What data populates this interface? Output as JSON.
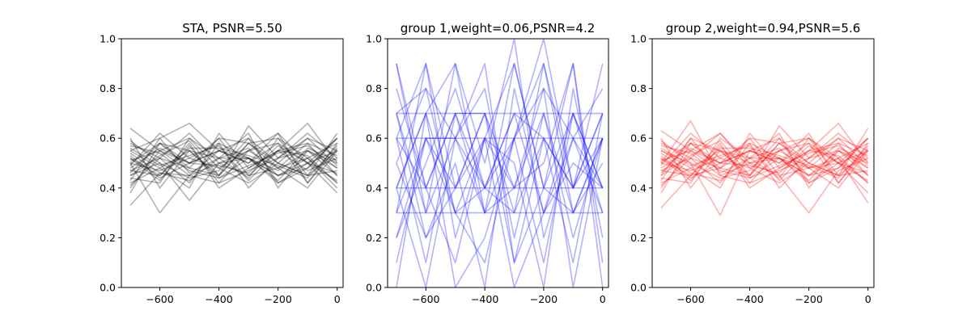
{
  "chart_data": [
    {
      "type": "line",
      "title": "STA, PSNR=5.50",
      "color": "#000000",
      "opacity": 0.3,
      "xlim": [
        -730,
        20
      ],
      "ylim": [
        0.0,
        1.0
      ],
      "xticks": [
        -600,
        -400,
        -200,
        0
      ],
      "yticks": [
        0.0,
        0.2,
        0.4,
        0.6,
        0.8,
        1.0
      ],
      "x": [
        -700,
        -600,
        -500,
        -400,
        -300,
        -200,
        -100,
        0
      ],
      "series": [
        {
          "values": [
            0.64,
            0.55,
            0.6,
            0.48,
            0.55,
            0.62,
            0.5,
            0.6
          ]
        },
        {
          "values": [
            0.33,
            0.46,
            0.45,
            0.55,
            0.52,
            0.47,
            0.55,
            0.45
          ]
        },
        {
          "values": [
            0.5,
            0.3,
            0.45,
            0.5,
            0.52,
            0.45,
            0.5,
            0.55
          ]
        },
        {
          "values": [
            0.55,
            0.6,
            0.66,
            0.55,
            0.6,
            0.5,
            0.6,
            0.55
          ]
        },
        {
          "values": [
            0.45,
            0.5,
            0.35,
            0.5,
            0.55,
            0.48,
            0.52,
            0.42
          ]
        },
        {
          "values": [
            0.58,
            0.52,
            0.48,
            0.6,
            0.45,
            0.55,
            0.47,
            0.52
          ]
        },
        {
          "values": [
            0.42,
            0.48,
            0.55,
            0.45,
            0.65,
            0.52,
            0.55,
            0.48
          ]
        },
        {
          "values": [
            0.4,
            0.55,
            0.5,
            0.55,
            0.5,
            0.62,
            0.42,
            0.58
          ]
        },
        {
          "values": [
            0.52,
            0.45,
            0.58,
            0.4,
            0.48,
            0.55,
            0.66,
            0.5
          ]
        },
        {
          "values": [
            0.47,
            0.52,
            0.42,
            0.58,
            0.52,
            0.42,
            0.48,
            0.6
          ]
        },
        {
          "values": [
            0.6,
            0.4,
            0.55,
            0.52,
            0.44,
            0.6,
            0.52,
            0.4
          ]
        },
        {
          "values": [
            0.38,
            0.58,
            0.48,
            0.45,
            0.58,
            0.48,
            0.4,
            0.55
          ]
        },
        {
          "values": [
            0.55,
            0.48,
            0.4,
            0.62,
            0.48,
            0.55,
            0.58,
            0.45
          ]
        },
        {
          "values": [
            0.49,
            0.62,
            0.52,
            0.48,
            0.42,
            0.5,
            0.45,
            0.62
          ]
        },
        {
          "values": [
            0.44,
            0.42,
            0.6,
            0.52,
            0.62,
            0.4,
            0.55,
            0.5
          ]
        },
        {
          "values": [
            0.57,
            0.54,
            0.45,
            0.42,
            0.55,
            0.58,
            0.5,
            0.38
          ]
        },
        {
          "values": [
            0.5,
            0.47,
            0.52,
            0.58,
            0.4,
            0.52,
            0.62,
            0.52
          ]
        },
        {
          "values": [
            0.46,
            0.58,
            0.55,
            0.44,
            0.52,
            0.45,
            0.52,
            0.58
          ]
        },
        {
          "values": [
            0.53,
            0.44,
            0.5,
            0.6,
            0.58,
            0.6,
            0.45,
            0.47
          ]
        },
        {
          "values": [
            0.41,
            0.52,
            0.62,
            0.5,
            0.45,
            0.48,
            0.58,
            0.53
          ]
        },
        {
          "values": [
            0.59,
            0.5,
            0.44,
            0.47,
            0.6,
            0.42,
            0.5,
            0.43
          ]
        },
        {
          "values": [
            0.48,
            0.56,
            0.5,
            0.55,
            0.5,
            0.58,
            0.42,
            0.56
          ]
        },
        {
          "values": [
            0.52,
            0.43,
            0.57,
            0.42,
            0.47,
            0.52,
            0.6,
            0.49
          ]
        },
        {
          "values": [
            0.43,
            0.6,
            0.46,
            0.52,
            0.56,
            0.45,
            0.48,
            0.6
          ]
        },
        {
          "values": [
            0.56,
            0.49,
            0.53,
            0.57,
            0.43,
            0.55,
            0.53,
            0.42
          ]
        },
        {
          "values": [
            0.45,
            0.53,
            0.59,
            0.45,
            0.58,
            0.5,
            0.45,
            0.55
          ]
        },
        {
          "values": [
            0.54,
            0.46,
            0.43,
            0.52,
            0.52,
            0.43,
            0.56,
            0.51
          ]
        },
        {
          "values": [
            0.5,
            0.58,
            0.5,
            0.49,
            0.46,
            0.57,
            0.5,
            0.46
          ]
        },
        {
          "values": [
            0.47,
            0.45,
            0.56,
            0.56,
            0.53,
            0.49,
            0.44,
            0.57
          ]
        },
        {
          "values": [
            0.51,
            0.55,
            0.47,
            0.44,
            0.49,
            0.54,
            0.57,
            0.48
          ]
        }
      ]
    },
    {
      "type": "line",
      "title": "group 1,weight=0.06,PSNR=4.2",
      "color": "#0000ff",
      "opacity": 0.3,
      "xlim": [
        -730,
        20
      ],
      "ylim": [
        0.0,
        1.0
      ],
      "xticks": [
        -600,
        -400,
        -200,
        0
      ],
      "yticks": [
        0.0,
        0.2,
        0.4,
        0.6,
        0.8,
        1.0
      ],
      "x": [
        -700,
        -600,
        -500,
        -400,
        -300,
        -200,
        -100,
        0
      ],
      "series": [
        {
          "values": [
            0.7,
            0.7,
            0.7,
            0.7,
            0.7,
            0.7,
            0.7,
            0.7
          ]
        },
        {
          "values": [
            0.4,
            0.4,
            0.4,
            0.4,
            0.4,
            0.4,
            0.4,
            0.4
          ]
        },
        {
          "values": [
            0.3,
            0.3,
            0.3,
            0.3,
            0.3,
            0.3,
            0.3,
            0.3
          ]
        },
        {
          "values": [
            0.6,
            0.6,
            0.6,
            0.6,
            0.6,
            0.6,
            0.6,
            0.6
          ]
        },
        {
          "values": [
            0.9,
            0.4,
            0.7,
            0.3,
            0.9,
            0.4,
            0.7,
            0.3
          ]
        },
        {
          "values": [
            0.3,
            0.9,
            0.4,
            0.7,
            0.3,
            0.9,
            0.4,
            0.7
          ]
        },
        {
          "values": [
            0.7,
            0.3,
            0.6,
            0.4,
            0.7,
            0.3,
            0.6,
            0.4
          ]
        },
        {
          "values": [
            0.4,
            0.7,
            0.3,
            0.6,
            0.4,
            0.7,
            0.3,
            0.6
          ]
        },
        {
          "values": [
            0.1,
            0.6,
            0.4,
            0.7,
            0.1,
            0.6,
            0.4,
            0.9
          ]
        },
        {
          "values": [
            0.6,
            0.1,
            0.7,
            0.4,
            0.6,
            0.1,
            0.7,
            0.4
          ]
        },
        {
          "values": [
            0.8,
            0.4,
            0.1,
            0.6,
            0.9,
            0.4,
            0.3,
            0.6
          ]
        },
        {
          "values": [
            0.0,
            0.7,
            0.9,
            0.3,
            0.4,
            0.8,
            0.6,
            0.3
          ]
        },
        {
          "values": [
            0.4,
            0.0,
            0.6,
            0.9,
            0.1,
            0.4,
            0.9,
            0.1
          ]
        },
        {
          "values": [
            0.7,
            0.8,
            0.3,
            0.1,
            0.6,
            1.0,
            0.4,
            0.6
          ]
        },
        {
          "values": [
            0.2,
            0.5,
            0.8,
            0.4,
            0.3,
            0.6,
            0.1,
            0.7
          ]
        },
        {
          "values": [
            0.5,
            0.2,
            0.5,
            0.0,
            0.8,
            0.3,
            0.5,
            0.4
          ]
        },
        {
          "values": [
            0.6,
            0.9,
            0.2,
            0.6,
            0.5,
            0.0,
            0.8,
            0.2
          ]
        },
        {
          "values": [
            0.3,
            0.6,
            0.6,
            0.8,
            0.2,
            0.7,
            0.2,
            0.6
          ]
        },
        {
          "values": [
            0.9,
            0.3,
            0.9,
            0.5,
            1.0,
            0.2,
            0.6,
            0.8
          ]
        },
        {
          "values": [
            0.4,
            0.7,
            0.0,
            0.2,
            0.6,
            0.9,
            0.3,
            0.5
          ]
        },
        {
          "values": [
            0.6,
            0.4,
            0.7,
            0.7,
            0.4,
            0.5,
            0.9,
            0.0
          ]
        },
        {
          "values": [
            0.2,
            0.6,
            0.3,
            0.4,
            0.7,
            0.6,
            0.4,
            0.7
          ]
        },
        {
          "values": [
            0.7,
            0.2,
            0.4,
            0.6,
            0.0,
            0.3,
            0.7,
            0.4
          ]
        },
        {
          "values": [
            0.5,
            0.8,
            0.6,
            0.3,
            0.6,
            0.8,
            0.0,
            0.6
          ]
        }
      ]
    },
    {
      "type": "line",
      "title": "group 2,weight=0.94,PSNR=5.6",
      "color": "#ff0000",
      "opacity": 0.3,
      "xlim": [
        -730,
        20
      ],
      "ylim": [
        0.0,
        1.0
      ],
      "xticks": [
        -600,
        -400,
        -200,
        0
      ],
      "yticks": [
        0.0,
        0.2,
        0.4,
        0.6,
        0.8,
        1.0
      ],
      "x": [
        -700,
        -600,
        -500,
        -400,
        -300,
        -200,
        -100,
        0
      ],
      "series": [
        {
          "values": [
            0.63,
            0.55,
            0.62,
            0.48,
            0.55,
            0.6,
            0.5,
            0.6
          ]
        },
        {
          "values": [
            0.32,
            0.45,
            0.48,
            0.55,
            0.52,
            0.45,
            0.55,
            0.45
          ]
        },
        {
          "values": [
            0.5,
            0.67,
            0.45,
            0.5,
            0.52,
            0.48,
            0.5,
            0.55
          ]
        },
        {
          "values": [
            0.55,
            0.5,
            0.29,
            0.55,
            0.6,
            0.5,
            0.6,
            0.55
          ]
        },
        {
          "values": [
            0.45,
            0.6,
            0.55,
            0.5,
            0.55,
            0.48,
            0.52,
            0.42
          ]
        },
        {
          "values": [
            0.58,
            0.52,
            0.48,
            0.6,
            0.45,
            0.3,
            0.47,
            0.52
          ]
        },
        {
          "values": [
            0.42,
            0.48,
            0.55,
            0.45,
            0.65,
            0.52,
            0.55,
            0.48
          ]
        },
        {
          "values": [
            0.4,
            0.55,
            0.5,
            0.55,
            0.5,
            0.62,
            0.42,
            0.58
          ]
        },
        {
          "values": [
            0.52,
            0.45,
            0.58,
            0.4,
            0.48,
            0.55,
            0.66,
            0.5
          ]
        },
        {
          "values": [
            0.47,
            0.52,
            0.42,
            0.58,
            0.52,
            0.42,
            0.48,
            0.6
          ]
        },
        {
          "values": [
            0.6,
            0.4,
            0.55,
            0.52,
            0.44,
            0.6,
            0.52,
            0.34
          ]
        },
        {
          "values": [
            0.38,
            0.58,
            0.48,
            0.45,
            0.58,
            0.48,
            0.4,
            0.55
          ]
        },
        {
          "values": [
            0.55,
            0.48,
            0.4,
            0.62,
            0.48,
            0.55,
            0.58,
            0.45
          ]
        },
        {
          "values": [
            0.49,
            0.62,
            0.52,
            0.48,
            0.42,
            0.5,
            0.45,
            0.64
          ]
        },
        {
          "values": [
            0.44,
            0.42,
            0.6,
            0.52,
            0.62,
            0.4,
            0.55,
            0.5
          ]
        },
        {
          "values": [
            0.57,
            0.54,
            0.45,
            0.42,
            0.55,
            0.58,
            0.5,
            0.38
          ]
        },
        {
          "values": [
            0.5,
            0.47,
            0.52,
            0.58,
            0.4,
            0.52,
            0.62,
            0.52
          ]
        },
        {
          "values": [
            0.46,
            0.58,
            0.55,
            0.44,
            0.52,
            0.45,
            0.52,
            0.58
          ]
        },
        {
          "values": [
            0.53,
            0.44,
            0.5,
            0.6,
            0.58,
            0.6,
            0.45,
            0.47
          ]
        },
        {
          "values": [
            0.41,
            0.52,
            0.62,
            0.5,
            0.45,
            0.48,
            0.58,
            0.53
          ]
        },
        {
          "values": [
            0.59,
            0.5,
            0.44,
            0.47,
            0.6,
            0.42,
            0.5,
            0.43
          ]
        },
        {
          "values": [
            0.48,
            0.56,
            0.5,
            0.55,
            0.5,
            0.58,
            0.42,
            0.56
          ]
        },
        {
          "values": [
            0.52,
            0.43,
            0.57,
            0.42,
            0.47,
            0.52,
            0.6,
            0.49
          ]
        },
        {
          "values": [
            0.43,
            0.6,
            0.46,
            0.52,
            0.56,
            0.45,
            0.48,
            0.6
          ]
        },
        {
          "values": [
            0.56,
            0.49,
            0.53,
            0.57,
            0.43,
            0.55,
            0.53,
            0.42
          ]
        },
        {
          "values": [
            0.45,
            0.53,
            0.59,
            0.45,
            0.58,
            0.5,
            0.45,
            0.55
          ]
        },
        {
          "values": [
            0.54,
            0.46,
            0.43,
            0.52,
            0.52,
            0.43,
            0.56,
            0.51
          ]
        },
        {
          "values": [
            0.5,
            0.58,
            0.5,
            0.49,
            0.46,
            0.57,
            0.5,
            0.46
          ]
        },
        {
          "values": [
            0.47,
            0.45,
            0.56,
            0.56,
            0.53,
            0.49,
            0.44,
            0.57
          ]
        },
        {
          "values": [
            0.51,
            0.55,
            0.47,
            0.44,
            0.49,
            0.54,
            0.57,
            0.48
          ]
        }
      ]
    }
  ]
}
